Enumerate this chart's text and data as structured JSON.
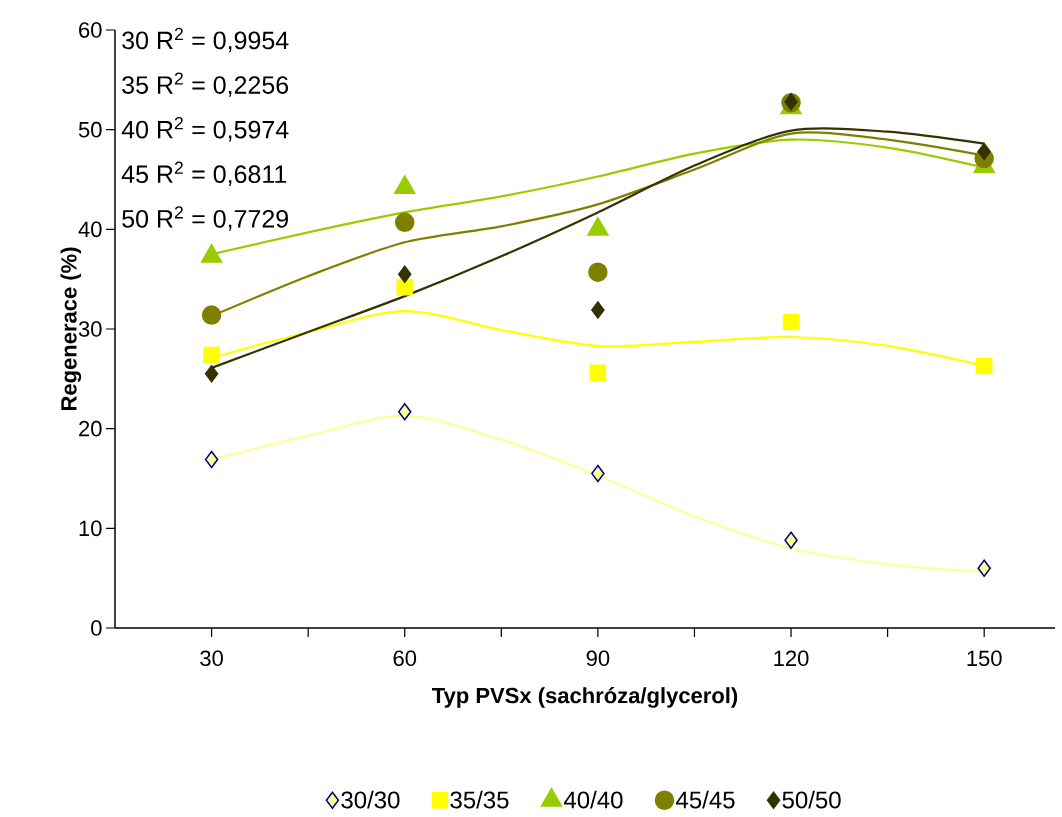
{
  "chart_data": {
    "type": "scatter",
    "xlabel": "Typ PVSx (sachróza/glycerol)",
    "ylabel": "Regenerace (%)",
    "x": [
      30,
      60,
      90,
      120,
      150
    ],
    "xlim": [
      15,
      161
    ],
    "ylim": [
      0,
      60
    ],
    "xticks": [
      30,
      {
        "value": 45,
        "label": null
      },
      60,
      {
        "value": 75,
        "label": null
      },
      90,
      {
        "value": 105,
        "label": null
      },
      120,
      {
        "value": 135,
        "label": null
      },
      150
    ],
    "yticks": [
      0,
      10,
      20,
      30,
      40,
      50,
      60
    ],
    "grid": false,
    "legend": "bottom",
    "annotations": [
      "30 R$^{2}$ = 0,9954",
      "35 R$^{2}$ = 0,2256",
      "40 R$^{2}$ = 0,5974",
      "45 R$^{2}$ = 0,6811",
      "50 R$^{2}$ = 0,7729"
    ],
    "series": [
      {
        "name": "30/30",
        "color": "#ffff99",
        "marker": "diamond",
        "values": [
          16.9,
          21.7,
          15.5,
          8.8,
          6.0
        ]
      },
      {
        "name": "35/35",
        "color": "#ffff00",
        "marker": "square",
        "values": [
          27.4,
          34.2,
          25.6,
          30.7,
          26.3
        ]
      },
      {
        "name": "40/40",
        "color": "#99cc00",
        "marker": "triangle",
        "values": [
          37.3,
          44.2,
          40.0,
          52.2,
          46.3
        ]
      },
      {
        "name": "45/45",
        "color": "#808000",
        "marker": "circle",
        "values": [
          31.4,
          40.7,
          35.7,
          52.7,
          47.1
        ]
      },
      {
        "name": "50/50",
        "color": "#333300",
        "marker": "diamond",
        "values": [
          25.5,
          35.5,
          31.9,
          52.8,
          47.8
        ]
      },
      {
        "type": "line",
        "color": "#ffff99",
        "x": [
          30,
          45,
          60,
          75,
          90,
          105,
          120,
          135,
          150
        ],
        "values": [
          16.9,
          19.3,
          21.3,
          18.9,
          15.3,
          11.2,
          8.0,
          6.4,
          5.6
        ]
      },
      {
        "type": "line",
        "color": "#ffff00",
        "x": [
          30,
          45,
          60,
          75,
          90,
          105,
          120,
          135,
          150
        ],
        "values": [
          27.1,
          29.7,
          31.8,
          29.9,
          28.3,
          28.7,
          29.2,
          28.3,
          26.3
        ]
      },
      {
        "type": "line",
        "color": "#99cc00",
        "x": [
          30,
          45,
          60,
          75,
          90,
          105,
          120,
          135,
          150
        ],
        "values": [
          37.5,
          39.7,
          41.7,
          43.3,
          45.3,
          47.6,
          49.0,
          48.2,
          46.2
        ]
      },
      {
        "type": "line",
        "color": "#808000",
        "x": [
          30,
          45,
          60,
          75,
          90,
          105,
          120,
          135,
          150
        ],
        "values": [
          31.3,
          35.3,
          38.7,
          40.3,
          42.5,
          46.0,
          49.6,
          49.0,
          47.4
        ]
      },
      {
        "type": "line",
        "color": "#333300",
        "x": [
          30,
          45,
          60,
          75,
          90,
          105,
          120,
          135,
          150
        ],
        "values": [
          26.1,
          29.7,
          33.3,
          37.3,
          41.7,
          46.4,
          49.9,
          49.8,
          48.6
        ]
      }
    ]
  }
}
